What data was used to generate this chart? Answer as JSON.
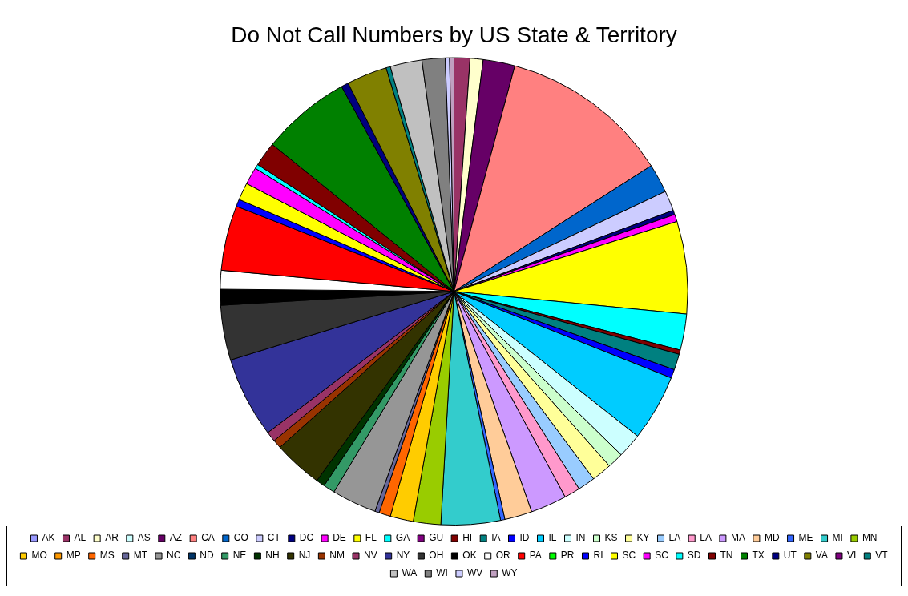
{
  "chart_data": {
    "type": "pie",
    "title": "Do Not Call Numbers by US State & Territory",
    "categories": [
      "AK",
      "AL",
      "AR",
      "AS",
      "AZ",
      "CA",
      "CO",
      "CT",
      "DC",
      "DE",
      "FL",
      "GA",
      "GU",
      "HI",
      "IA",
      "ID",
      "IL",
      "IN",
      "KS",
      "KY",
      "LA",
      "LA",
      "MA",
      "MD",
      "ME",
      "MI",
      "MN",
      "MO",
      "MP",
      "MS",
      "MT",
      "NC",
      "ND",
      "NE",
      "NH",
      "NJ",
      "NM",
      "NV",
      "NY",
      "OH",
      "OK",
      "OR",
      "PA",
      "PR",
      "RI",
      "SC",
      "SC",
      "SD",
      "TN",
      "TX",
      "UT",
      "VA",
      "VI",
      "VT",
      "WA",
      "WI",
      "WV",
      "WY"
    ],
    "values": [
      null,
      1.1,
      0.9,
      null,
      2.2,
      11.8,
      2.0,
      1.4,
      0.3,
      0.5,
      6.4,
      2.5,
      null,
      0.3,
      1.1,
      0.6,
      4.6,
      1.7,
      1.1,
      1.4,
      1.2,
      1.1,
      2.5,
      1.9,
      0.3,
      4.1,
      1.9,
      1.6,
      null,
      0.8,
      0.3,
      3.1,
      null,
      0.8,
      0.6,
      3.4,
      0.6,
      0.7,
      5.6,
      3.8,
      1.1,
      1.3,
      4.5,
      null,
      0.5,
      1.2,
      1.2,
      0.3,
      1.7,
      6.2,
      0.5,
      2.8,
      null,
      0.3,
      2.2,
      1.6,
      0.3,
      0.3
    ],
    "colors": [
      "#9999ff",
      "#993366",
      "#ffffcc",
      "#ccffff",
      "#660066",
      "#ff8080",
      "#0066cc",
      "#ccccff",
      "#000080",
      "#ff00ff",
      "#ffff00",
      "#00ffff",
      "#800080",
      "#800000",
      "#008080",
      "#0000ff",
      "#00ccff",
      "#ccffff",
      "#ccffcc",
      "#ffff99",
      "#99ccff",
      "#ff99cc",
      "#cc99ff",
      "#ffcc99",
      "#3366ff",
      "#33cccc",
      "#99cc00",
      "#ffcc00",
      "#ff9900",
      "#ff6600",
      "#666699",
      "#969696",
      "#003366",
      "#339966",
      "#003300",
      "#333300",
      "#993300",
      "#993366",
      "#333399",
      "#333333",
      "#000000",
      "#ffffff",
      "#ff0000",
      "#00ff00",
      "#0000ff",
      "#ffff00",
      "#ff00ff",
      "#00ffff",
      "#800000",
      "#008000",
      "#000080",
      "#808000",
      "#800080",
      "#008080",
      "#c0c0c0",
      "#808080",
      "#ccccff",
      "#c0a0c0"
    ],
    "legend": "bottom"
  }
}
